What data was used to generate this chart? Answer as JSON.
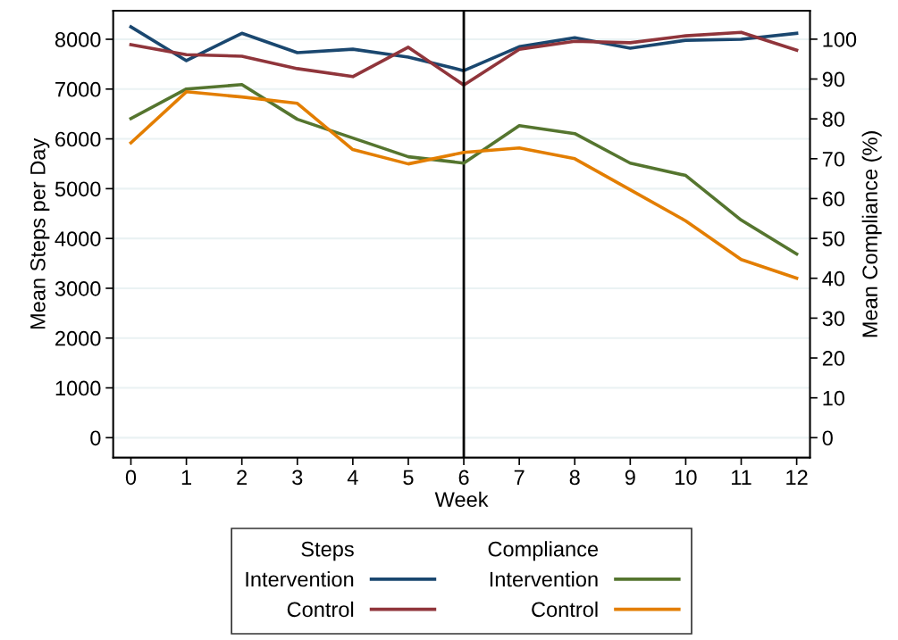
{
  "chart_data": {
    "type": "line",
    "xlabel": "Week",
    "ylabel": "Mean Steps per Day",
    "y2label": "Mean Compliance (%)",
    "x": [
      0,
      1,
      2,
      3,
      4,
      5,
      6,
      7,
      8,
      9,
      10,
      11,
      12
    ],
    "xlim": [
      -0.32,
      12.24
    ],
    "xticks": [
      0,
      1,
      2,
      3,
      4,
      5,
      6,
      7,
      8,
      9,
      10,
      11,
      12
    ],
    "ylim": [
      -400,
      8570
    ],
    "yticks": [
      0,
      1000,
      2000,
      3000,
      4000,
      5000,
      6000,
      7000,
      8000
    ],
    "y2lim": [
      -5,
      107.1
    ],
    "y2ticks": [
      0,
      10,
      20,
      30,
      40,
      50,
      60,
      70,
      80,
      90,
      100
    ],
    "grid": "y",
    "legend": "bottom",
    "line_style": "solid",
    "annotations": [
      "Steps",
      "Compliance"
    ],
    "ref_lines": [
      {
        "axis": "x",
        "value": 6,
        "label": null,
        "color": "#000000"
      }
    ],
    "series": [
      {
        "name": "Intervention",
        "color": "#1a476f",
        "values": [
          8250,
          7570,
          8120,
          7730,
          7800,
          7640,
          7370,
          7850,
          8030,
          7820,
          7980,
          8000,
          8120
        ]
      },
      {
        "name": "Control",
        "color": "#90353b",
        "values": [
          7890,
          7690,
          7660,
          7410,
          7250,
          7840,
          7080,
          7800,
          7960,
          7930,
          8070,
          8140,
          7780
        ]
      },
      {
        "name": "Intervention",
        "color": "#55752f",
        "axis": "y2",
        "values": [
          80.1,
          87.5,
          88.6,
          79.9,
          75.2,
          70.5,
          68.9,
          78.3,
          76.3,
          68.9,
          65.8,
          54.6,
          46.1
        ]
      },
      {
        "name": "Control",
        "color": "#e37e00",
        "axis": "y2",
        "values": [
          74.0,
          86.8,
          85.5,
          83.9,
          72.3,
          68.7,
          71.6,
          72.7,
          70.0,
          62.2,
          54.4,
          44.7,
          40.0
        ]
      }
    ]
  }
}
